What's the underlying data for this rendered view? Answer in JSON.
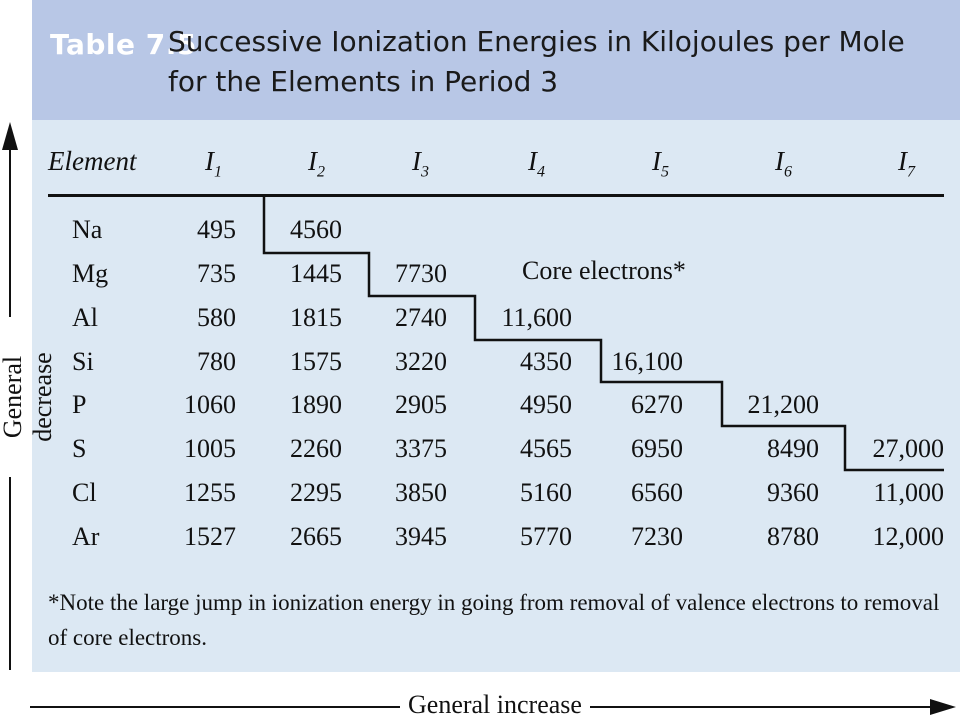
{
  "header": {
    "table_number": "Table 7.5",
    "title": "Successive Ionization Energies in Kilojoules per Mole for the Elements in Period 3"
  },
  "table": {
    "columns": [
      "Element",
      "I",
      "I",
      "I",
      "I",
      "I",
      "I",
      "I"
    ],
    "column_subscripts": [
      "",
      "1",
      "2",
      "3",
      "4",
      "5",
      "6",
      "7"
    ],
    "rows": [
      {
        "element": "Na",
        "values": [
          "495",
          "4560",
          "",
          "",
          "",
          "",
          ""
        ]
      },
      {
        "element": "Mg",
        "values": [
          "735",
          "1445",
          "7730",
          "",
          "",
          "",
          ""
        ]
      },
      {
        "element": "Al",
        "values": [
          "580",
          "1815",
          "2740",
          "11,600",
          "",
          "",
          ""
        ]
      },
      {
        "element": "Si",
        "values": [
          "780",
          "1575",
          "3220",
          "4350",
          "16,100",
          "",
          ""
        ]
      },
      {
        "element": "P",
        "values": [
          "1060",
          "1890",
          "2905",
          "4950",
          "6270",
          "21,200",
          ""
        ]
      },
      {
        "element": "S",
        "values": [
          "1005",
          "2260",
          "3375",
          "4565",
          "6950",
          "8490",
          "27,000"
        ]
      },
      {
        "element": "Cl",
        "values": [
          "1255",
          "2295",
          "3850",
          "5160",
          "6560",
          "9360",
          "11,000"
        ]
      },
      {
        "element": "Ar",
        "values": [
          "1527",
          "2665",
          "3945",
          "5770",
          "7230",
          "8780",
          "12,000"
        ]
      }
    ],
    "core_label": "Core electrons*"
  },
  "footnote": "*Note the large jump in ionization energy in going from removal of valence electrons to removal of core electrons.",
  "axes": {
    "vertical_label": "General decrease",
    "horizontal_label": "General increase"
  }
}
